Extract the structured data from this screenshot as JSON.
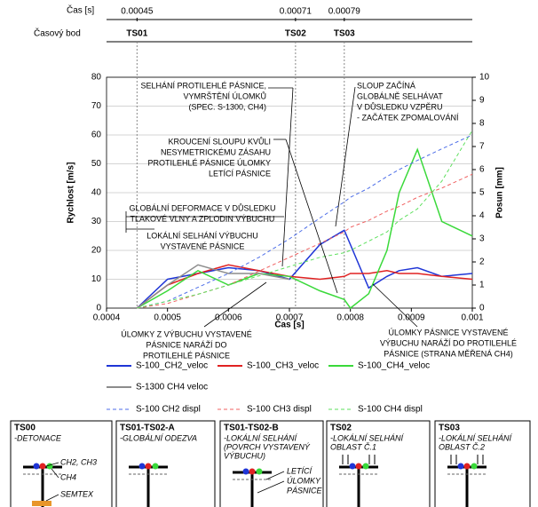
{
  "chart_data": {
    "type": "line",
    "xlabel": "Čas [s]",
    "ylabel": "Rychlost [m/s]",
    "y2label": "Posun [mm]",
    "x": [
      0.00045,
      0.0005,
      0.00055,
      0.0006,
      0.00065,
      0.0007,
      0.00075,
      0.00079,
      0.0008,
      0.00083,
      0.00086,
      0.00088,
      0.00091,
      0.00095,
      0.001
    ],
    "xlim": [
      0.0004,
      0.001
    ],
    "xticks": [
      0.0004,
      0.0005,
      0.0006,
      0.0007,
      0.0008,
      0.0009,
      0.001
    ],
    "ylim": [
      0,
      80
    ],
    "yticks": [
      0,
      10,
      20,
      30,
      40,
      50,
      60,
      70,
      80
    ],
    "y2lim": [
      0,
      10
    ],
    "y2ticks": [
      0,
      1,
      2,
      3,
      4,
      5,
      6,
      7,
      8,
      9,
      10
    ],
    "grid": true,
    "series": [
      {
        "name": "S-100_CH2_veloc",
        "color": "#1f35d6",
        "values": [
          0,
          10,
          12,
          14,
          13,
          10,
          22,
          27,
          22,
          7,
          11,
          13,
          14,
          11,
          12
        ]
      },
      {
        "name": "S-100_CH3_veloc",
        "color": "#e02222",
        "values": [
          0,
          8,
          12,
          15,
          13,
          11,
          10,
          11,
          12,
          12,
          13,
          12,
          12,
          11,
          10
        ]
      },
      {
        "name": "S-100_CH4_veloc",
        "color": "#3ad93a",
        "values": [
          0,
          6,
          13,
          8,
          12,
          11,
          6,
          3,
          0,
          5,
          20,
          40,
          55,
          30,
          25
        ]
      },
      {
        "name": "S-1300 CH4 veloc",
        "color": "#8c8c8c",
        "values": [
          0,
          8,
          15,
          12,
          12,
          10,
          null,
          null,
          null,
          null,
          null,
          null,
          null,
          null,
          null
        ]
      },
      {
        "name": "S-100 CH2 displ",
        "color": "#4d6ee8",
        "dashed": true,
        "axis": "y2",
        "values": [
          0,
          0.3,
          0.9,
          1.5,
          2.2,
          3,
          3.9,
          4.6,
          4.8,
          5.2,
          5.7,
          6,
          6.4,
          6.9,
          7.5
        ]
      },
      {
        "name": "S-100 CH3 displ",
        "color": "#f06060",
        "dashed": true,
        "axis": "y2",
        "values": [
          0,
          0.2,
          0.6,
          1,
          1.6,
          2.2,
          2.8,
          3.3,
          3.5,
          3.8,
          4.2,
          4.4,
          4.8,
          5.2,
          5.8
        ]
      },
      {
        "name": "S-100 CH4 displ",
        "color": "#5ee05e",
        "dashed": true,
        "axis": "y2",
        "values": [
          0,
          0.3,
          0.6,
          1,
          1.4,
          1.8,
          2.2,
          2.4,
          2.5,
          2.9,
          3.3,
          3.8,
          4.3,
          5.5,
          7.7
        ]
      }
    ],
    "timeline": {
      "time_label": "Čas [s]",
      "point_label": "Časový bod",
      "times": [
        0.00045,
        0.00071,
        0.00079
      ],
      "points": [
        "TS01",
        "TS02",
        "TS03"
      ]
    },
    "annotations": [
      {
        "lines": [
          "SELHÁNÍ PROTILEHLÉ PÁSNICE,",
          "VYMRŠTĚNÍ ÚLOMKŮ",
          "(SPEC. S-1300, CH4)"
        ]
      },
      {
        "lines": [
          "KROUCENÍ SLOUPU KVŮLI",
          "NESYMETRICKÉMU ZÁSAHU",
          "PROTILEHLÉ PÁSNICE ÚLOMKY",
          "LETÍCÍ PÁSNICE"
        ]
      },
      {
        "lines": [
          "GLOBÁLNÍ DEFORMACE V DŮSLEDKU",
          "TLAKOVÉ VLNY A ZPLODIN VÝBUCHU"
        ]
      },
      {
        "lines": [
          "LOKÁLNÍ SELHÁNÍ VÝBUCHU",
          "VYSTAVENÉ PÁSNICE"
        ]
      },
      {
        "lines": [
          "SLOUP ZAČÍNÁ",
          "GLOBÁLNĚ SELHÁVAT",
          "V DŮSLEDKU VZPĚRU",
          "- ZAČÁTEK ZPOMALOVÁNÍ"
        ]
      },
      {
        "lines": [
          "ÚLOMKY Z VÝBUCHU VYSTAVENÉ",
          "PÁSNICE NARÁŽÍ DO",
          "PROTILEHLÉ PÁSNICE"
        ]
      },
      {
        "lines": [
          "ÚLOMKY PÁSNICE VYSTAVENÉ",
          "VÝBUCHU NARÁŽÍ DO PROTILEHLÉ",
          "PÁSNICE (STRANA MĚŘENÁ CH4)"
        ]
      }
    ]
  },
  "panels": [
    {
      "title": "TS00",
      "lines": [
        "-DETONACE"
      ],
      "labels": [
        "CH2, CH3",
        "CH4",
        "SEMTEX"
      ]
    },
    {
      "title": "TS01-TS02-A",
      "lines": [
        "-GLOBÁLNÍ ODEZVA"
      ],
      "labels": []
    },
    {
      "title": "TS01-TS02-B",
      "lines": [
        "-LOKÁLNÍ SELHÁNÍ",
        "(POVRCH VYSTAVENÝ",
        "VÝBUCHU)"
      ],
      "labels": [
        "LETÍCÍ",
        "ÚLOMKY",
        "PÁSNICE"
      ]
    },
    {
      "title": "TS02",
      "lines": [
        "-LOKÁLNÍ SELHÁNÍ",
        "OBLAST Č.1"
      ],
      "labels": []
    },
    {
      "title": "TS03",
      "lines": [
        "-LOKÁLNÍ SELHÁNÍ",
        "OBLAST Č.2"
      ],
      "labels": []
    }
  ]
}
